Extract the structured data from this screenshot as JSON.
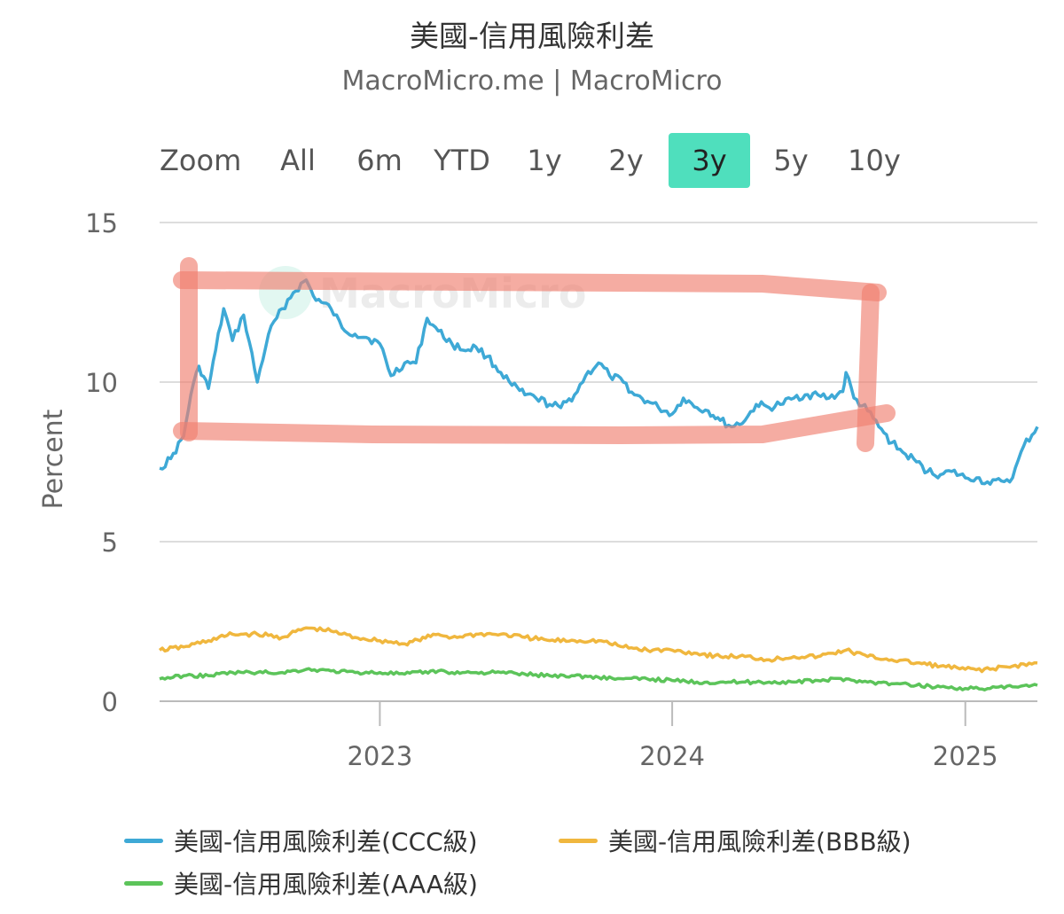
{
  "header": {
    "title": "美國-信用風險利差",
    "subtitle": "MacroMicro.me | MacroMicro"
  },
  "zoom": {
    "label": "Zoom",
    "buttons": [
      "All",
      "6m",
      "YTD",
      "1y",
      "2y",
      "3y",
      "5y",
      "10y"
    ],
    "active": "3y"
  },
  "watermark": "MacroMicro",
  "colors": {
    "ccc": "#3ea9d6",
    "bbb": "#f0b73e",
    "aaa": "#5cc45a",
    "annotation": "#f08070",
    "active_zoom": "#4fdfbd"
  },
  "chart_data": {
    "type": "line",
    "ylabel": "Percent",
    "ylim": [
      0,
      15
    ],
    "yticks": [
      0,
      5,
      10,
      15
    ],
    "xticks": [
      "2023",
      "2024",
      "2025"
    ],
    "xlim": [
      "2022-04",
      "2025-04"
    ],
    "grid": true,
    "legend_position": "bottom",
    "series": [
      {
        "name": "美國-信用風險利差(CCC級)",
        "color": "#3ea9d6",
        "x": [
          "2022-04-01",
          "2022-04-15",
          "2022-05-01",
          "2022-05-10",
          "2022-05-20",
          "2022-06-01",
          "2022-06-10",
          "2022-06-20",
          "2022-07-01",
          "2022-07-15",
          "2022-08-01",
          "2022-08-15",
          "2022-09-01",
          "2022-09-15",
          "2022-10-01",
          "2022-10-10",
          "2022-10-20",
          "2022-11-01",
          "2022-11-15",
          "2022-12-01",
          "2022-12-15",
          "2023-01-01",
          "2023-01-15",
          "2023-02-01",
          "2023-02-15",
          "2023-03-01",
          "2023-03-15",
          "2023-04-01",
          "2023-04-15",
          "2023-05-01",
          "2023-05-15",
          "2023-06-01",
          "2023-06-15",
          "2023-07-01",
          "2023-07-15",
          "2023-08-01",
          "2023-08-15",
          "2023-09-01",
          "2023-09-15",
          "2023-10-01",
          "2023-10-15",
          "2023-11-01",
          "2023-11-15",
          "2023-12-01",
          "2023-12-15",
          "2024-01-01",
          "2024-01-15",
          "2024-02-01",
          "2024-02-15",
          "2024-03-01",
          "2024-03-15",
          "2024-04-01",
          "2024-04-15",
          "2024-05-01",
          "2024-05-15",
          "2024-06-01",
          "2024-06-15",
          "2024-07-01",
          "2024-07-15",
          "2024-08-01",
          "2024-08-05",
          "2024-08-15",
          "2024-09-01",
          "2024-09-15",
          "2024-10-01",
          "2024-10-15",
          "2024-11-01",
          "2024-11-15",
          "2024-12-01",
          "2024-12-15",
          "2025-01-01",
          "2025-01-15",
          "2025-02-01",
          "2025-02-15",
          "2025-03-01",
          "2025-03-15",
          "2025-04-01"
        ],
        "y": [
          7.3,
          7.6,
          8.3,
          9.6,
          10.5,
          9.8,
          11.0,
          12.3,
          11.3,
          12.1,
          10.0,
          11.5,
          12.3,
          12.8,
          13.2,
          12.7,
          12.5,
          12.3,
          11.7,
          11.5,
          11.4,
          11.2,
          10.2,
          10.6,
          10.6,
          12.0,
          11.6,
          11.2,
          11.0,
          11.1,
          10.8,
          10.3,
          9.9,
          9.6,
          9.5,
          9.3,
          9.2,
          9.6,
          10.2,
          10.6,
          10.2,
          10.0,
          9.6,
          9.4,
          9.2,
          9.0,
          9.5,
          9.2,
          9.1,
          8.8,
          8.6,
          8.8,
          9.3,
          9.2,
          9.3,
          9.5,
          9.6,
          9.6,
          9.5,
          9.7,
          10.3,
          9.5,
          9.1,
          8.6,
          8.1,
          7.8,
          7.5,
          7.2,
          7.1,
          7.2,
          7.0,
          7.0,
          6.8,
          6.9,
          7.0,
          8.0,
          8.6
        ]
      },
      {
        "name": "美國-信用風險利差(BBB級)",
        "color": "#f0b73e",
        "x": [
          "2022-04-01",
          "2022-05-01",
          "2022-06-01",
          "2022-07-01",
          "2022-08-01",
          "2022-09-01",
          "2022-10-01",
          "2022-11-01",
          "2022-12-01",
          "2023-01-01",
          "2023-02-01",
          "2023-03-15",
          "2023-04-01",
          "2023-05-01",
          "2023-06-01",
          "2023-07-01",
          "2023-08-01",
          "2023-09-01",
          "2023-10-01",
          "2023-11-01",
          "2023-12-01",
          "2024-01-01",
          "2024-02-01",
          "2024-03-01",
          "2024-04-01",
          "2024-05-01",
          "2024-06-01",
          "2024-07-01",
          "2024-08-05",
          "2024-09-01",
          "2024-10-01",
          "2024-11-01",
          "2024-12-01",
          "2025-01-01",
          "2025-02-01",
          "2025-03-01",
          "2025-04-01"
        ],
        "y": [
          1.6,
          1.7,
          1.9,
          2.1,
          2.1,
          2.0,
          2.3,
          2.2,
          2.0,
          1.9,
          1.8,
          2.1,
          2.0,
          2.1,
          2.1,
          2.0,
          1.9,
          1.9,
          1.9,
          1.7,
          1.6,
          1.6,
          1.5,
          1.4,
          1.4,
          1.3,
          1.4,
          1.4,
          1.6,
          1.4,
          1.3,
          1.2,
          1.1,
          1.0,
          1.0,
          1.1,
          1.2
        ]
      },
      {
        "name": "美國-信用風險利差(AAA級)",
        "color": "#5cc45a",
        "x": [
          "2022-04-01",
          "2022-05-01",
          "2022-06-01",
          "2022-07-01",
          "2022-08-01",
          "2022-09-01",
          "2022-10-01",
          "2022-11-01",
          "2022-12-01",
          "2023-01-01",
          "2023-02-01",
          "2023-03-15",
          "2023-04-01",
          "2023-05-01",
          "2023-06-01",
          "2023-07-01",
          "2023-08-01",
          "2023-09-01",
          "2023-10-01",
          "2023-11-01",
          "2023-12-01",
          "2024-01-01",
          "2024-02-01",
          "2024-03-01",
          "2024-04-01",
          "2024-05-01",
          "2024-06-01",
          "2024-07-01",
          "2024-08-05",
          "2024-09-01",
          "2024-10-01",
          "2024-11-01",
          "2024-12-01",
          "2025-01-01",
          "2025-02-01",
          "2025-03-01",
          "2025-04-01"
        ],
        "y": [
          0.7,
          0.8,
          0.8,
          0.9,
          0.9,
          0.9,
          1.0,
          0.95,
          0.9,
          0.9,
          0.85,
          0.95,
          0.9,
          0.9,
          0.9,
          0.85,
          0.8,
          0.8,
          0.75,
          0.7,
          0.7,
          0.65,
          0.6,
          0.6,
          0.6,
          0.6,
          0.6,
          0.65,
          0.7,
          0.6,
          0.55,
          0.5,
          0.45,
          0.4,
          0.4,
          0.45,
          0.5
        ]
      }
    ]
  }
}
